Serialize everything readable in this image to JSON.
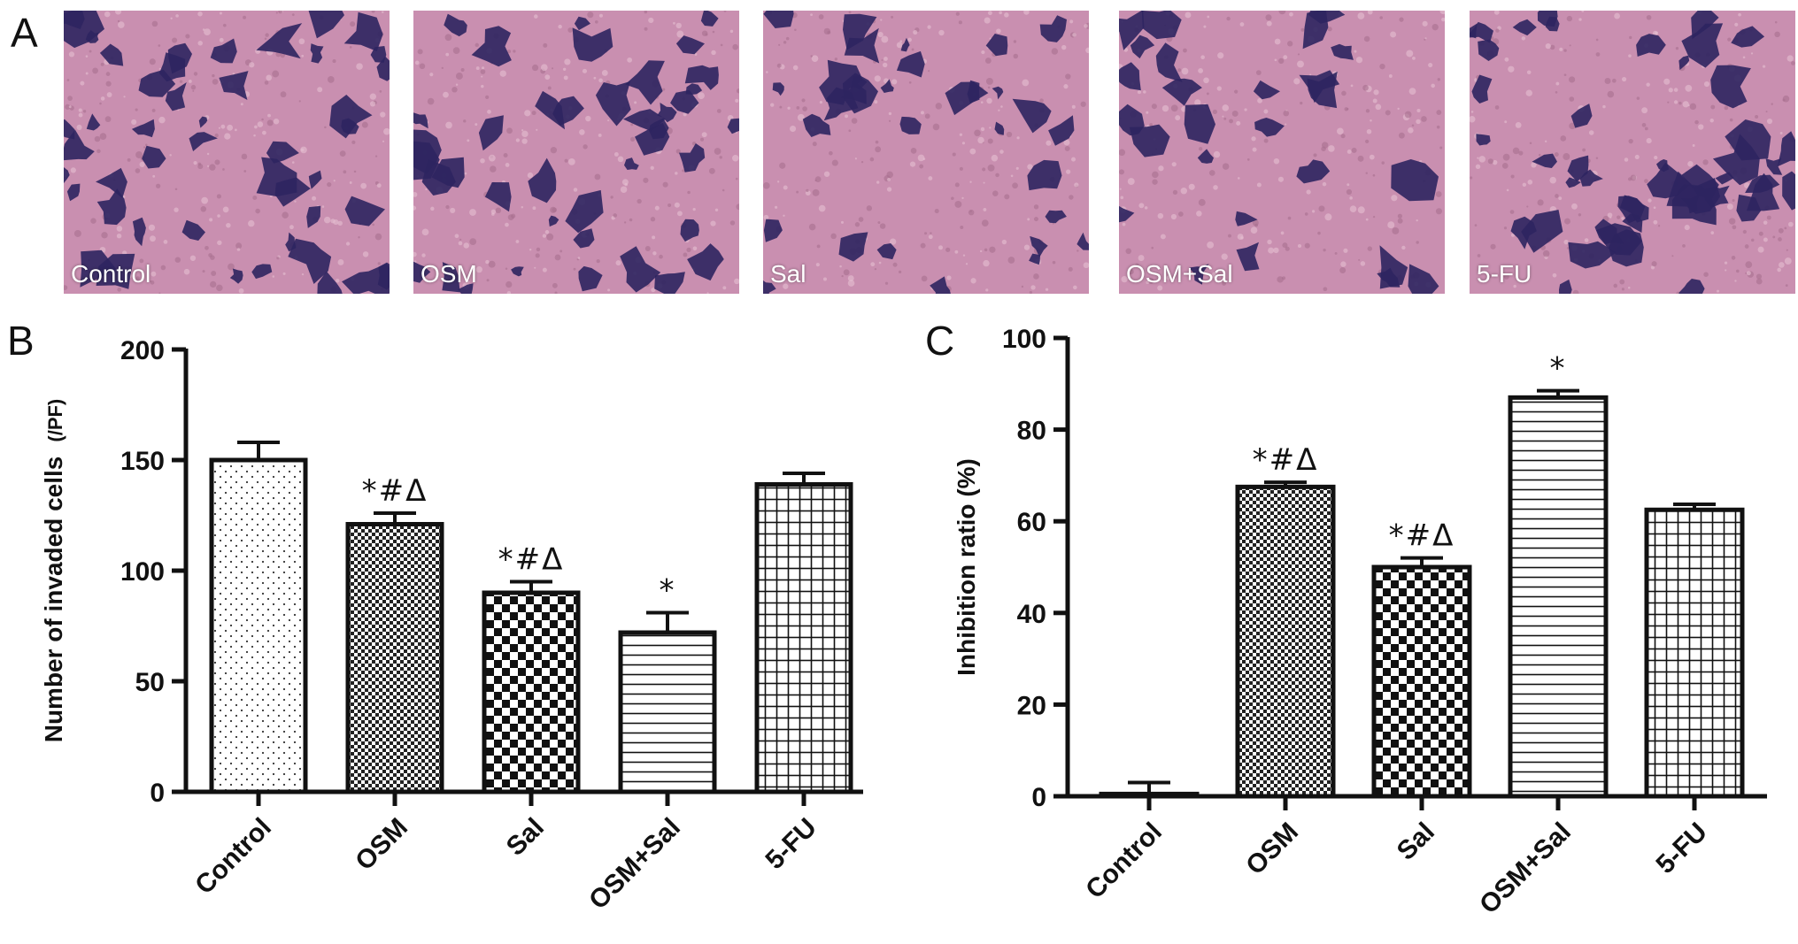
{
  "panels": {
    "a": {
      "letter": "A"
    },
    "b": {
      "letter": "B"
    },
    "c": {
      "letter": "C"
    }
  },
  "micrographs": [
    {
      "label": "Control",
      "cell_density": "high"
    },
    {
      "label": "OSM",
      "cell_density": "medium-high"
    },
    {
      "label": "Sal",
      "cell_density": "medium"
    },
    {
      "label": "OSM+Sal",
      "cell_density": "low"
    },
    {
      "label": "5-FU",
      "cell_density": "high"
    }
  ],
  "colors": {
    "stain_background": "#c98fb0",
    "stain_cells": "#2e2560",
    "bar_outline": "#111111"
  },
  "chart_data": [
    {
      "panel": "B",
      "type": "bar",
      "categories": [
        "Control",
        "OSM",
        "Sal",
        "OSM+Sal",
        "5-FU"
      ],
      "values": [
        150,
        121,
        90,
        72,
        139
      ],
      "errors": [
        8,
        5,
        5,
        9,
        5
      ],
      "annotations": [
        "",
        "*#Δ",
        "*#Δ",
        "*",
        ""
      ],
      "patterns": [
        "dots",
        "checker-fine",
        "checker-large",
        "horizontal-lines",
        "grid"
      ],
      "ylabel": "Number of invaded cells",
      "ylabel_unit": "(/PF)",
      "ylim": [
        0,
        200
      ],
      "yticks": [
        0,
        50,
        100,
        150,
        200
      ],
      "grid": false
    },
    {
      "panel": "C",
      "type": "bar",
      "categories": [
        "Control",
        "OSM",
        "Sal",
        "OSM+Sal",
        "5-FU"
      ],
      "values": [
        0.5,
        67.5,
        50,
        87,
        62.5
      ],
      "errors": [
        2.5,
        1,
        2,
        1.5,
        1.2
      ],
      "annotations": [
        "",
        "*#Δ",
        "*#Δ",
        "*",
        ""
      ],
      "patterns": [
        "none",
        "checker-fine",
        "checker-large",
        "horizontal-lines",
        "grid"
      ],
      "ylabel": "Inhibition ratio (%)",
      "ylim": [
        0,
        100
      ],
      "yticks": [
        0,
        20,
        40,
        60,
        80,
        100
      ],
      "grid": false
    }
  ]
}
